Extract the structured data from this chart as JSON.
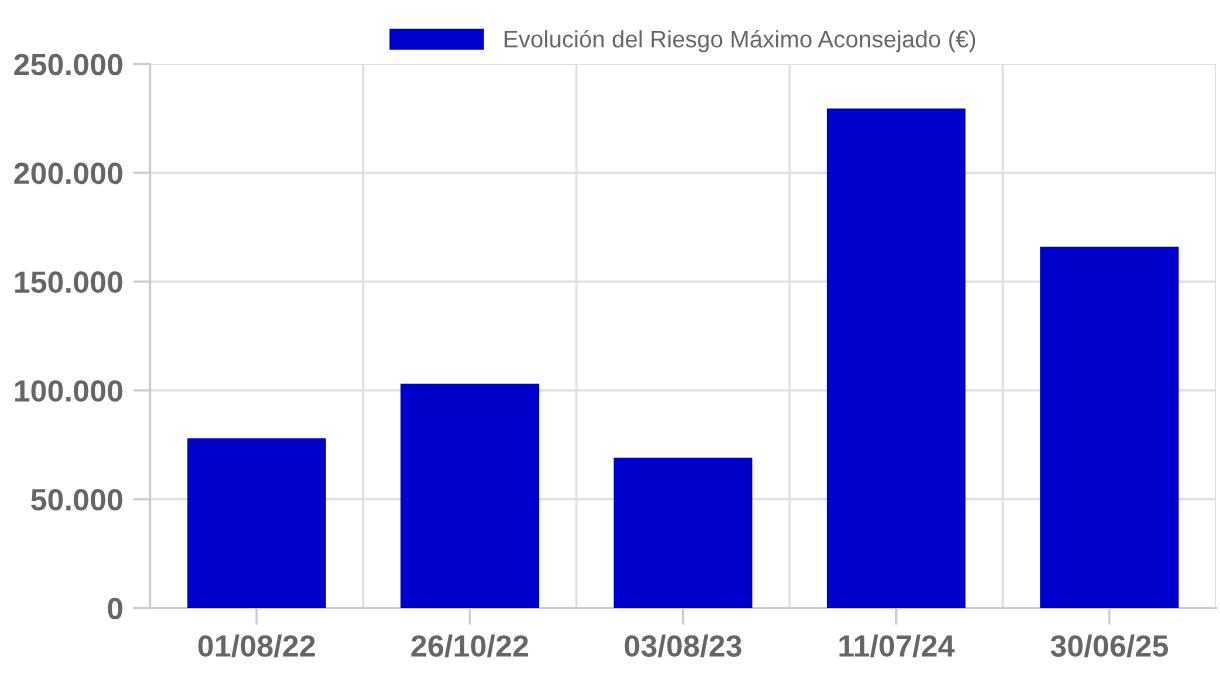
{
  "chart_data": {
    "type": "bar",
    "categories": [
      "01/08/22",
      "26/10/22",
      "03/08/23",
      "11/07/24",
      "30/06/25"
    ],
    "series": [
      {
        "name": "Evolución del Riesgo Máximo Aconsejado (€)",
        "color": "#0000cc",
        "values": [
          78000,
          103000,
          69000,
          229500,
          166000
        ]
      }
    ],
    "ylim": [
      0,
      250000
    ],
    "yticks": [
      {
        "value": 0,
        "label": "0"
      },
      {
        "value": 50000,
        "label": "50.000"
      },
      {
        "value": 100000,
        "label": "100.000"
      },
      {
        "value": 150000,
        "label": "150.000"
      },
      {
        "value": 200000,
        "label": "200.000"
      },
      {
        "value": 250000,
        "label": "250.000"
      }
    ],
    "grid": true,
    "legend": "top"
  }
}
